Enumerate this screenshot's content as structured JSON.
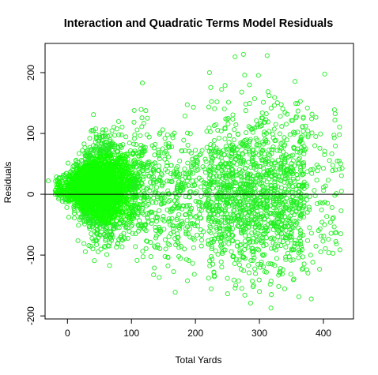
{
  "chart_data": {
    "type": "scatter",
    "title": "Interaction and Quadratic Terms Model Residuals",
    "xlabel": "Total Yards",
    "ylabel": "Residuals",
    "xlim": [
      -35,
      447
    ],
    "ylim": [
      -205,
      248
    ],
    "x_ticks": [
      0,
      100,
      200,
      300,
      400
    ],
    "y_ticks": [
      -200,
      -100,
      0,
      100,
      200
    ],
    "x_tick_labels": [
      "0",
      "100",
      "200",
      "300",
      "400"
    ],
    "y_tick_labels": [
      "-200",
      "-100",
      "0",
      "100",
      "200"
    ],
    "reference_line_y": 0,
    "point_color": "#22ee22",
    "dense_point_color": "#11ff00",
    "marker": "open-circle",
    "grid": false,
    "legend": "none",
    "density_regions": [
      {
        "name": "dense-cluster",
        "x_range": [
          -20,
          120
        ],
        "center_x": 50,
        "center_y": 10,
        "spread_y": 38,
        "approx_points": 2600
      },
      {
        "name": "transition",
        "x_range": [
          100,
          220
        ],
        "spread_y": 55,
        "approx_points": 500
      },
      {
        "name": "mid-to-high",
        "x_range": [
          220,
          370
        ],
        "spread_y": 65,
        "approx_points": 1300
      },
      {
        "name": "high-tail",
        "x_range": [
          360,
          430
        ],
        "spread_y": 70,
        "approx_points": 110
      }
    ],
    "notable_points": [
      {
        "x": 275,
        "y": 230
      },
      {
        "x": 262,
        "y": 226
      },
      {
        "x": 312,
        "y": 228
      },
      {
        "x": 277,
        "y": 196
      },
      {
        "x": 222,
        "y": 200
      },
      {
        "x": 117,
        "y": 183
      },
      {
        "x": 318,
        "y": -187
      },
      {
        "x": 300,
        "y": -160
      },
      {
        "x": 290,
        "y": -152
      },
      {
        "x": 330,
        "y": -133
      },
      {
        "x": 260,
        "y": -141
      },
      {
        "x": -30,
        "y": 22
      },
      {
        "x": 418,
        "y": 122
      },
      {
        "x": 425,
        "y": 98
      },
      {
        "x": 420,
        "y": -63
      },
      {
        "x": 427,
        "y": -65
      },
      {
        "x": 415,
        "y": -97
      },
      {
        "x": 380,
        "y": -100
      }
    ]
  }
}
